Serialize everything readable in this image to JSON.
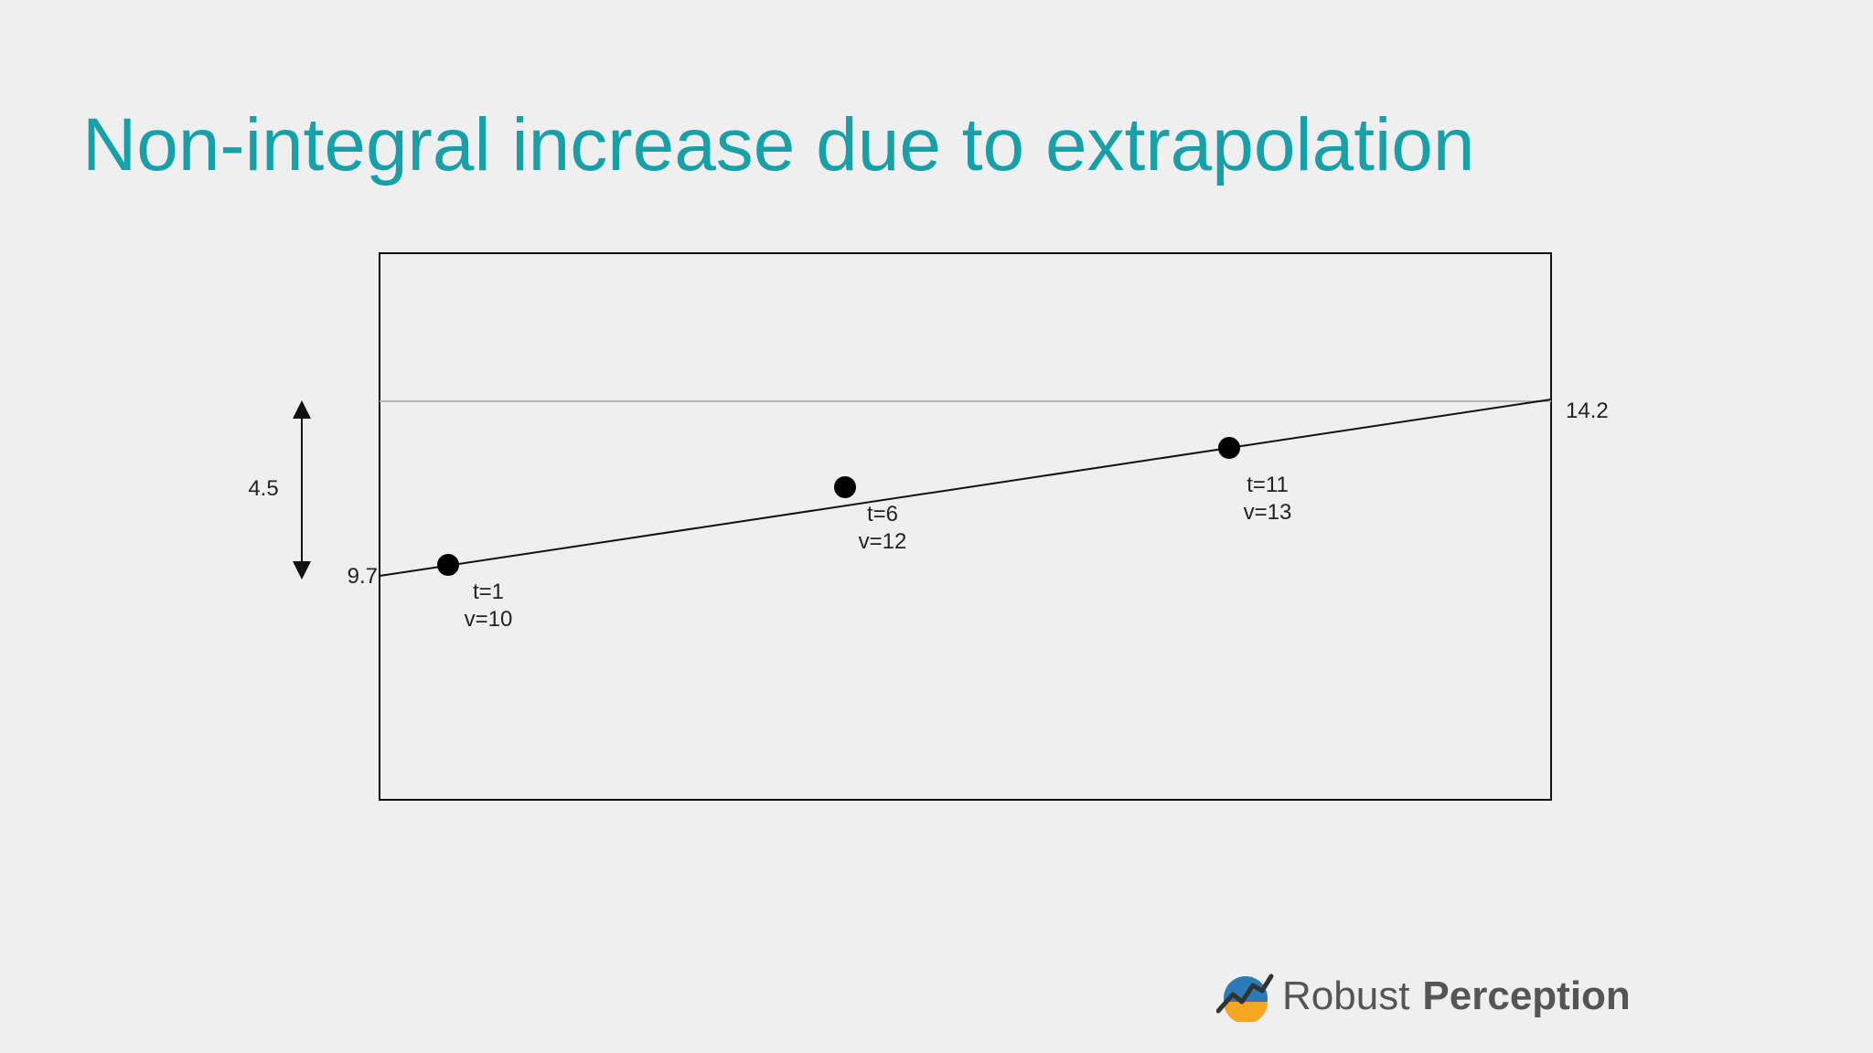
{
  "slide": {
    "title": "Non-integral increase due to extrapolation"
  },
  "diagram": {
    "points": [
      {
        "t": 1,
        "v": 10,
        "label_t": "t=1",
        "label_v": "v=10"
      },
      {
        "t": 6,
        "v": 12,
        "label_t": "t=6",
        "label_v": "v=12"
      },
      {
        "t": 11,
        "v": 13,
        "label_t": "t=11",
        "label_v": "v=13"
      }
    ],
    "fit_line": {
      "start_value": 9.7,
      "end_value": 14.2,
      "start_label": "9.7",
      "end_label": "14.2"
    },
    "increase_label": "4.5",
    "colors": {
      "frame": "#111111",
      "reference_line": "#b5b5b5",
      "points": "#000000"
    }
  },
  "logo": {
    "text_light": "Robust",
    "text_bold": "Perception",
    "icon": "rising-chart-logo-icon",
    "colors": [
      "#2b7bb9",
      "#f5a623",
      "#333333"
    ]
  }
}
